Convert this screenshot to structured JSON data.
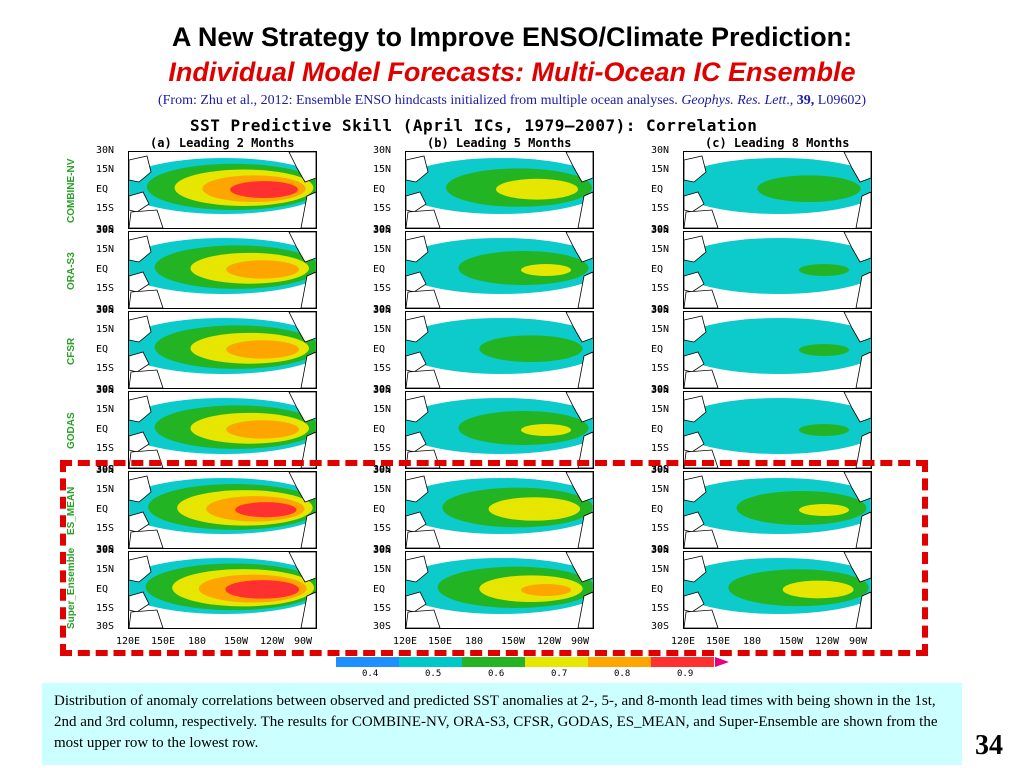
{
  "slide": {
    "title": "A New Strategy to Improve ENSO/Climate Prediction:",
    "subtitle": "Individual Model Forecasts: Multi-Ocean IC Ensemble",
    "citation": {
      "prefix": "(From: Zhu  et al., 2012: Ensemble ENSO hindcasts initialized from multiple ocean analyses. ",
      "journal": "Geophys. Res. Lett",
      "sep": "., ",
      "volume": "39,",
      "suffix": " L09602)"
    },
    "page_number": "34"
  },
  "figure": {
    "title": "SST Predictive Skill (April ICs, 1979—2007): Correlation",
    "columns": [
      "(a) Leading 2 Months",
      "(b) Leading 5 Months",
      "(c) Leading 8 Months"
    ],
    "rows": [
      "COMBINE-NV",
      "ORA-S3",
      "CFSR",
      "GODAS",
      "ES_MEAN",
      "Super_Ensemble"
    ],
    "lat_labels": [
      "30N",
      "15N",
      "EQ",
      "15S",
      "30S"
    ],
    "lon_labels": [
      "120E",
      "150E",
      "180",
      "150W",
      "120W",
      "90W"
    ],
    "colorbar": {
      "ticks": [
        "0.4",
        "0.5",
        "0.6",
        "0.7",
        "0.8",
        "0.9"
      ],
      "colors": [
        "#1e90ff",
        "#00c8c8",
        "#22b422",
        "#e6e600",
        "#ffa500",
        "#ff3030",
        "#e8007a"
      ]
    },
    "skill_levels": [
      [
        0.9,
        0.7,
        0.6
      ],
      [
        0.8,
        0.65,
        0.55
      ],
      [
        0.8,
        0.6,
        0.55
      ],
      [
        0.8,
        0.65,
        0.55
      ],
      [
        0.88,
        0.72,
        0.65
      ],
      [
        0.92,
        0.75,
        0.68
      ]
    ]
  },
  "caption": "Distribution of anomaly correlations between observed and predicted SST anomalies at 2-, 5-, and 8-month lead times with being shown in the 1st, 2nd and 3rd column, respectively. The results for COMBINE-NV, ORA-S3, CFSR, GODAS, ES_MEAN, and Super-Ensemble are shown from the most upper row to the lowest row."
}
